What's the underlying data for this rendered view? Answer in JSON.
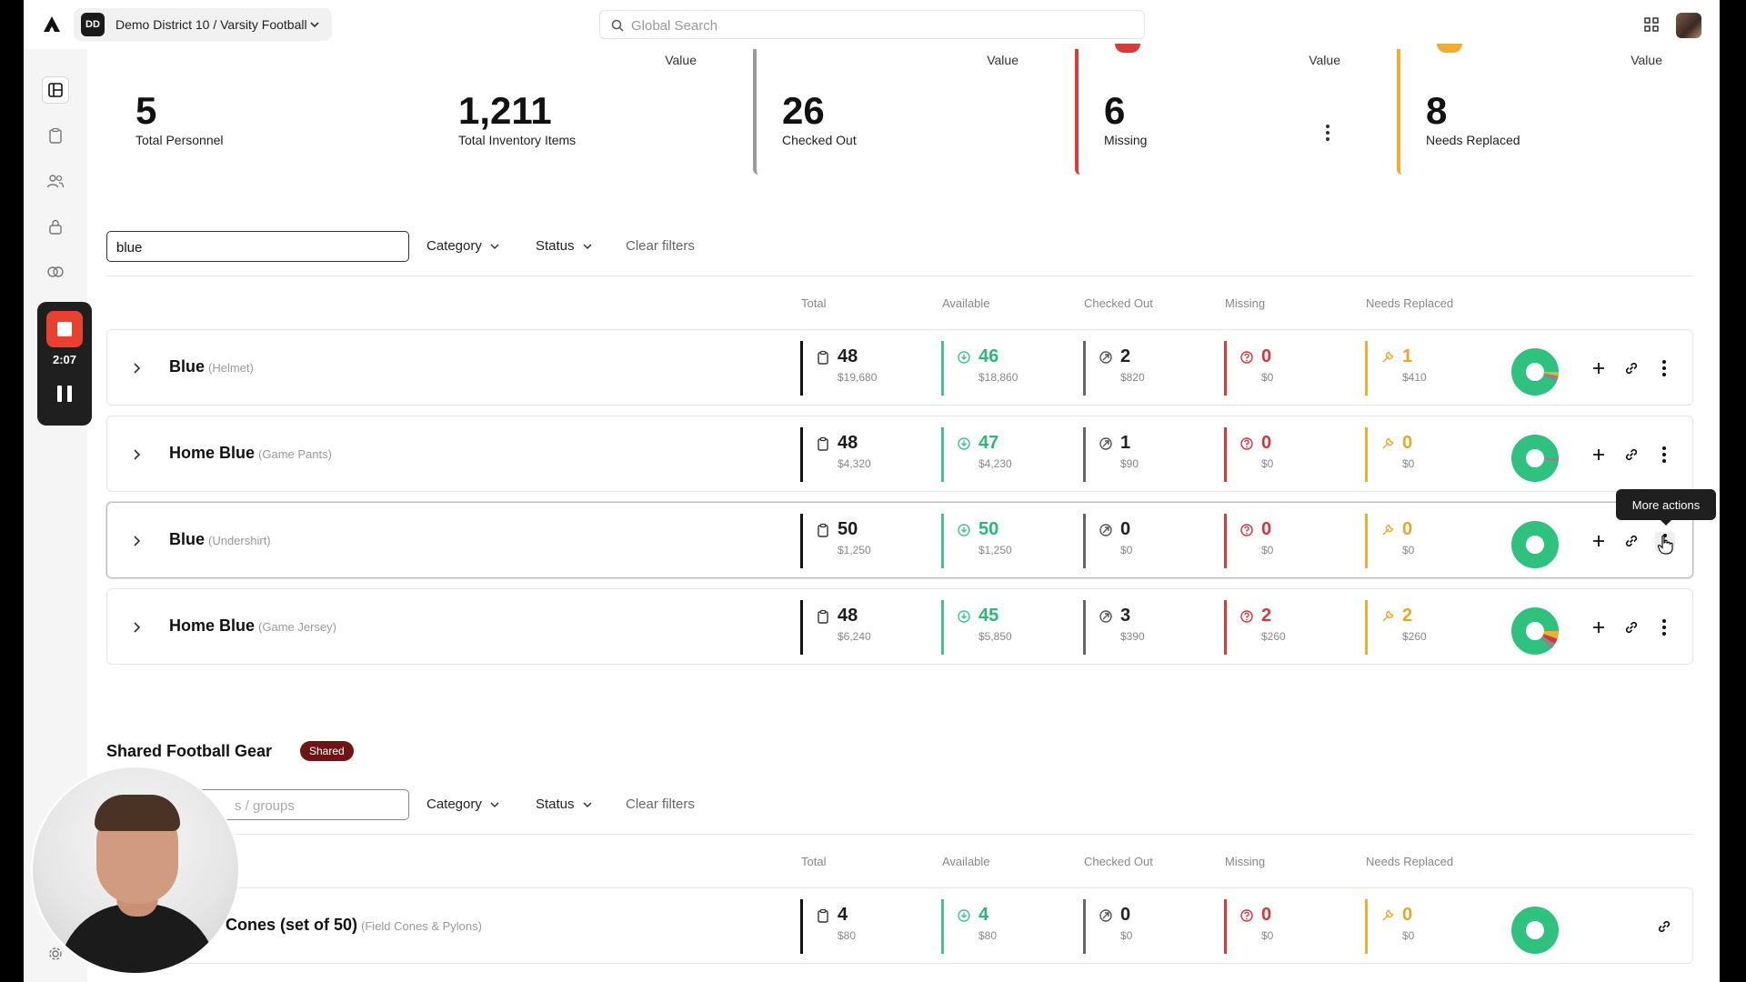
{
  "topbar": {
    "org_badge": "DD",
    "org_name": "Demo District 10 / Varsity Football",
    "search_placeholder": "Global Search"
  },
  "recorder": {
    "time": "2:07"
  },
  "stats": [
    {
      "top_label": "",
      "value": "5",
      "caption": "Total Personnel"
    },
    {
      "top_label": "Value",
      "value": "1,211",
      "caption": "Total Inventory Items"
    },
    {
      "top_label": "Value",
      "value": "26",
      "caption": "Checked Out",
      "accent": "#9a9a9a"
    },
    {
      "top_label": "Value",
      "value": "6",
      "caption": "Missing",
      "accent": "#d93a3a"
    },
    {
      "top_label": "Value",
      "value": "8",
      "caption": "Needs Replaced",
      "accent": "#f1ad2d"
    }
  ],
  "filters": {
    "search_value": "blue",
    "category_label": "Category",
    "status_label": "Status",
    "clear_label": "Clear filters"
  },
  "columns": {
    "total": "Total",
    "available": "Available",
    "checked_out": "Checked Out",
    "missing": "Missing",
    "needs_replaced": "Needs Replaced"
  },
  "rows": [
    {
      "name": "Blue",
      "type": "(Helmet)",
      "total": "48",
      "total_value": "$19,680",
      "available": "46",
      "available_value": "$18,860",
      "checked_out": "2",
      "checked_out_value": "$820",
      "missing": "0",
      "missing_value": "$0",
      "needs_replaced": "1",
      "needs_replaced_value": "$410"
    },
    {
      "name": "Home Blue",
      "type": "(Game Pants)",
      "total": "48",
      "total_value": "$4,320",
      "available": "47",
      "available_value": "$4,230",
      "checked_out": "1",
      "checked_out_value": "$90",
      "missing": "0",
      "missing_value": "$0",
      "needs_replaced": "0",
      "needs_replaced_value": "$0"
    },
    {
      "name": "Blue",
      "type": "(Undershirt)",
      "total": "50",
      "total_value": "$1,250",
      "available": "50",
      "available_value": "$1,250",
      "checked_out": "0",
      "checked_out_value": "$0",
      "missing": "0",
      "missing_value": "$0",
      "needs_replaced": "0",
      "needs_replaced_value": "$0"
    },
    {
      "name": "Home Blue",
      "type": "(Game Jersey)",
      "total": "48",
      "total_value": "$6,240",
      "available": "45",
      "available_value": "$5,850",
      "checked_out": "3",
      "checked_out_value": "$390",
      "missing": "2",
      "missing_value": "$260",
      "needs_replaced": "2",
      "needs_replaced_value": "$260"
    }
  ],
  "tooltip": "More actions",
  "shared": {
    "title": "Shared Football Gear",
    "badge": "Shared",
    "search_placeholder": "s / groups",
    "category_label": "Category",
    "status_label": "Status",
    "clear_label": "Clear filters",
    "rows": [
      {
        "name": "Cones (set of 50)",
        "type": "(Field Cones & Pylons)",
        "total": "4",
        "total_value": "$80",
        "available": "4",
        "available_value": "$80",
        "checked_out": "0",
        "checked_out_value": "$0",
        "missing": "0",
        "missing_value": "$0",
        "needs_replaced": "0",
        "needs_replaced_value": "$0"
      }
    ]
  },
  "colors": {
    "available": "#2bb77a",
    "missing": "#d6353b",
    "needs_replaced": "#eda526",
    "shared_badge": "#6e1414"
  }
}
